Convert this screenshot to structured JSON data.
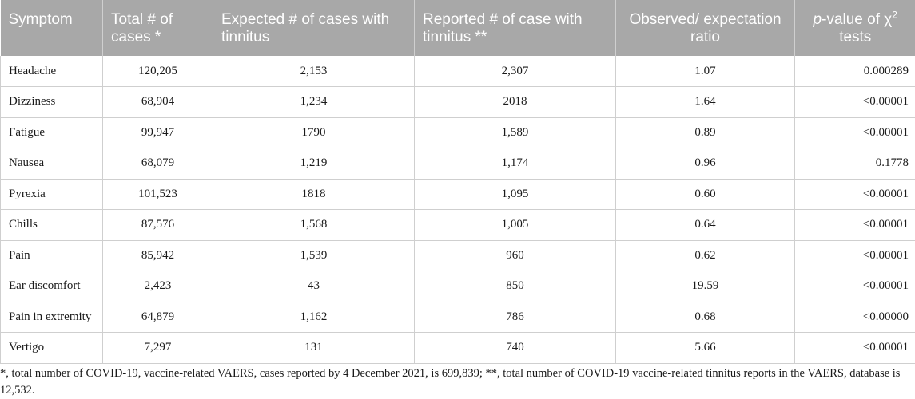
{
  "header": {
    "symptom": "Symptom",
    "total_cases": "Total # of cases *",
    "expected": "Expected # of cases with tinnitus",
    "reported": "Reported # of case with tinnitus **",
    "ratio": "Observed/ expectation ratio",
    "pvalue_p": "p",
    "pvalue_rest": "-value of χ",
    "pvalue_sup": "2",
    "pvalue_tests": "tests"
  },
  "rows": [
    {
      "symptom": "Headache",
      "total": "120,205",
      "expected": "2,153",
      "reported": "2,307",
      "ratio": "1.07",
      "p": "0.000289"
    },
    {
      "symptom": "Dizziness",
      "total": "68,904",
      "expected": "1,234",
      "reported": "2018",
      "ratio": "1.64",
      "p": "<0.00001"
    },
    {
      "symptom": "Fatigue",
      "total": "99,947",
      "expected": "1790",
      "reported": "1,589",
      "ratio": "0.89",
      "p": "<0.00001"
    },
    {
      "symptom": "Nausea",
      "total": "68,079",
      "expected": "1,219",
      "reported": "1,174",
      "ratio": "0.96",
      "p": "0.1778"
    },
    {
      "symptom": "Pyrexia",
      "total": "101,523",
      "expected": "1818",
      "reported": "1,095",
      "ratio": "0.60",
      "p": "<0.00001"
    },
    {
      "symptom": "Chills",
      "total": "87,576",
      "expected": "1,568",
      "reported": "1,005",
      "ratio": "0.64",
      "p": "<0.00001"
    },
    {
      "symptom": "Pain",
      "total": "85,942",
      "expected": "1,539",
      "reported": "960",
      "ratio": "0.62",
      "p": "<0.00001"
    },
    {
      "symptom": "Ear discomfort",
      "total": "2,423",
      "expected": "43",
      "reported": "850",
      "ratio": "19.59",
      "p": "<0.00001"
    },
    {
      "symptom": "Pain in extremity",
      "total": "64,879",
      "expected": "1,162",
      "reported": "786",
      "ratio": "0.68",
      "p": "<0.00000"
    },
    {
      "symptom": "Vertigo",
      "total": "7,297",
      "expected": "131",
      "reported": "740",
      "ratio": "5.66",
      "p": "<0.00001"
    }
  ],
  "footnote": "*, total number of COVID-19, vaccine-related VAERS, cases reported by 4 December 2021, is 699,839; **, total number of COVID-19 vaccine-related tinnitus reports in the VAERS, database is 12,532."
}
